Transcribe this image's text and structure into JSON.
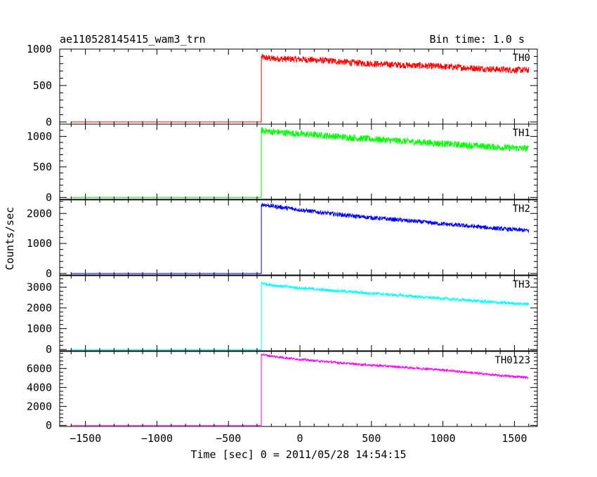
{
  "chart_data": {
    "type": "line",
    "title_left": "ae110528145415_wam3_trn",
    "title_right": "Bin time: 1.0 s",
    "xlabel": "Time [sec] 0 = 2011/05/28 14:54:15",
    "ylabel": "Counts/sec",
    "xlim": [
      -1680,
      1660
    ],
    "x_ticks": [
      -1500,
      -1000,
      -500,
      0,
      500,
      1000,
      1500
    ],
    "x_tick_labels": [
      "−1500",
      "−1000",
      "−500",
      "0",
      "500",
      "1000",
      "1500"
    ],
    "onset_x": -270,
    "end_x": 1600,
    "panels": [
      {
        "name": "TH0",
        "color": "#ff0000",
        "ylim": [
          -30,
          1000
        ],
        "y_ticks": [
          0,
          500,
          1000
        ],
        "y_tick_labels": [
          "0",
          "500",
          "1000"
        ],
        "background_level": 0,
        "x": [
          -270,
          -200,
          0,
          200,
          400,
          600,
          800,
          1000,
          1200,
          1400,
          1600
        ],
        "y": [
          890,
          870,
          860,
          840,
          810,
          790,
          775,
          760,
          740,
          720,
          710
        ],
        "noise": 45
      },
      {
        "name": "TH1",
        "color": "#00ff00",
        "ylim": [
          -30,
          1200
        ],
        "y_ticks": [
          0,
          500,
          1000
        ],
        "y_tick_labels": [
          "0",
          "500",
          "1000"
        ],
        "background_level": 0,
        "x": [
          -270,
          -200,
          0,
          200,
          400,
          600,
          800,
          1000,
          1200,
          1400,
          1600
        ],
        "y": [
          1100,
          1075,
          1040,
          1010,
          970,
          940,
          910,
          880,
          850,
          820,
          800
        ],
        "noise": 55
      },
      {
        "name": "TH2",
        "color": "#0000ff",
        "ylim": [
          -50,
          2450
        ],
        "y_ticks": [
          0,
          1000,
          2000
        ],
        "y_tick_labels": [
          "0",
          "1000",
          "2000"
        ],
        "background_level": 0,
        "x": [
          -270,
          -200,
          0,
          200,
          400,
          600,
          800,
          1000,
          1200,
          1400,
          1600
        ],
        "y": [
          2300,
          2250,
          2120,
          2000,
          1900,
          1820,
          1740,
          1650,
          1570,
          1490,
          1430
        ],
        "noise": 70
      },
      {
        "name": "TH3",
        "color": "#00ffff",
        "ylim": [
          -60,
          3550
        ],
        "y_ticks": [
          0,
          1000,
          2000,
          3000
        ],
        "y_tick_labels": [
          "0",
          "1000",
          "2000",
          "3000"
        ],
        "background_level": 0,
        "x": [
          -270,
          -200,
          0,
          200,
          400,
          600,
          800,
          1000,
          1200,
          1400,
          1600
        ],
        "y": [
          3200,
          3100,
          2950,
          2850,
          2750,
          2650,
          2550,
          2450,
          2350,
          2250,
          2180
        ],
        "noise": 70
      },
      {
        "name": "TH0123",
        "color": "#ff00ff",
        "ylim": [
          -120,
          7800
        ],
        "y_ticks": [
          0,
          2000,
          4000,
          6000
        ],
        "y_tick_labels": [
          "0",
          "2000",
          "4000",
          "6000"
        ],
        "background_level": 0,
        "x": [
          -270,
          -200,
          0,
          200,
          400,
          600,
          800,
          1000,
          1200,
          1400,
          1600
        ],
        "y": [
          7500,
          7300,
          6950,
          6700,
          6450,
          6250,
          6050,
          5850,
          5550,
          5250,
          5050
        ],
        "noise": 110
      }
    ]
  }
}
